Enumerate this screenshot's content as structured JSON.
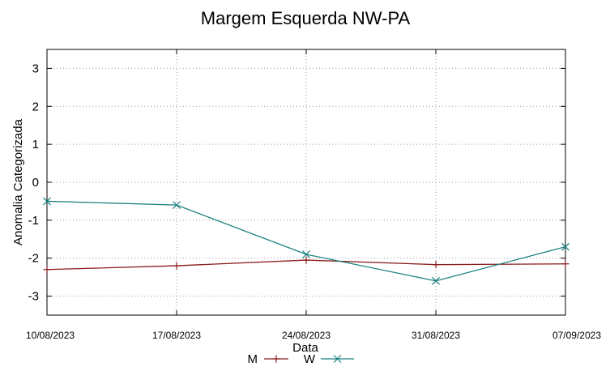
{
  "chart_data": {
    "type": "line",
    "title": "Margem Esquerda NW-PA",
    "xlabel": "Data",
    "ylabel": "Anomalia Categorizada",
    "categories": [
      "10/08/2023",
      "17/08/2023",
      "24/08/2023",
      "31/08/2023",
      "07/09/2023"
    ],
    "yticks": [
      3,
      2,
      1,
      0,
      -1,
      -2,
      -3
    ],
    "ylim": [
      -3.5,
      3.5
    ],
    "grid": true,
    "legend": "bottom",
    "series": [
      {
        "name": "M",
        "color": "#8b1a1a",
        "marker": "plus",
        "values": [
          -2.3,
          -2.2,
          -2.05,
          -2.17,
          -2.15
        ]
      },
      {
        "name": "W",
        "color": "#1a8080",
        "marker": "cross",
        "values": [
          -0.5,
          -0.6,
          -1.9,
          -2.6,
          -1.7
        ]
      }
    ]
  }
}
